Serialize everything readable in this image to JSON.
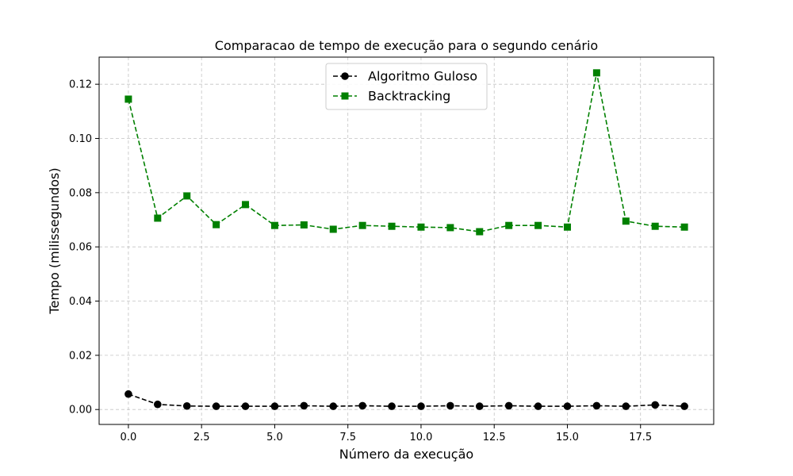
{
  "chart_data": {
    "type": "line",
    "title": "Comparacao de tempo de execução para o segundo cenário",
    "xlabel": "Número da execução",
    "ylabel": "Tempo (milissegundos)",
    "xlim": [
      -1.0,
      20.0
    ],
    "ylim": [
      -0.0055,
      0.13
    ],
    "grid": true,
    "legend_position": "upper center",
    "x": [
      0,
      1,
      2,
      3,
      4,
      5,
      6,
      7,
      8,
      9,
      10,
      11,
      12,
      13,
      14,
      15,
      16,
      17,
      18,
      19
    ],
    "x_ticks": [
      0.0,
      2.5,
      5.0,
      7.5,
      10.0,
      12.5,
      15.0,
      17.5
    ],
    "x_tick_labels": [
      "0.0",
      "2.5",
      "5.0",
      "7.5",
      "10.0",
      "12.5",
      "15.0",
      "17.5"
    ],
    "y_ticks": [
      0.0,
      0.02,
      0.04,
      0.06,
      0.08,
      0.1,
      0.12
    ],
    "y_tick_labels": [
      "0.00",
      "0.02",
      "0.04",
      "0.06",
      "0.08",
      "0.10",
      "0.12"
    ],
    "series": [
      {
        "name": "Algoritmo Guloso",
        "color": "#000000",
        "marker": "circle",
        "linestyle": "dashed",
        "values": [
          0.0057,
          0.0019,
          0.0013,
          0.0012,
          0.0012,
          0.0012,
          0.0014,
          0.0012,
          0.0014,
          0.0012,
          0.0012,
          0.0014,
          0.0012,
          0.0014,
          0.0012,
          0.0012,
          0.0014,
          0.0012,
          0.0017,
          0.0012
        ]
      },
      {
        "name": "Backtracking",
        "color": "#008000",
        "marker": "square",
        "linestyle": "dashed",
        "values": [
          0.1145,
          0.0706,
          0.0788,
          0.0682,
          0.0756,
          0.0679,
          0.0681,
          0.0665,
          0.0679,
          0.0676,
          0.0673,
          0.0671,
          0.0656,
          0.0679,
          0.0679,
          0.0673,
          0.1242,
          0.0695,
          0.0676,
          0.0673
        ]
      }
    ]
  }
}
